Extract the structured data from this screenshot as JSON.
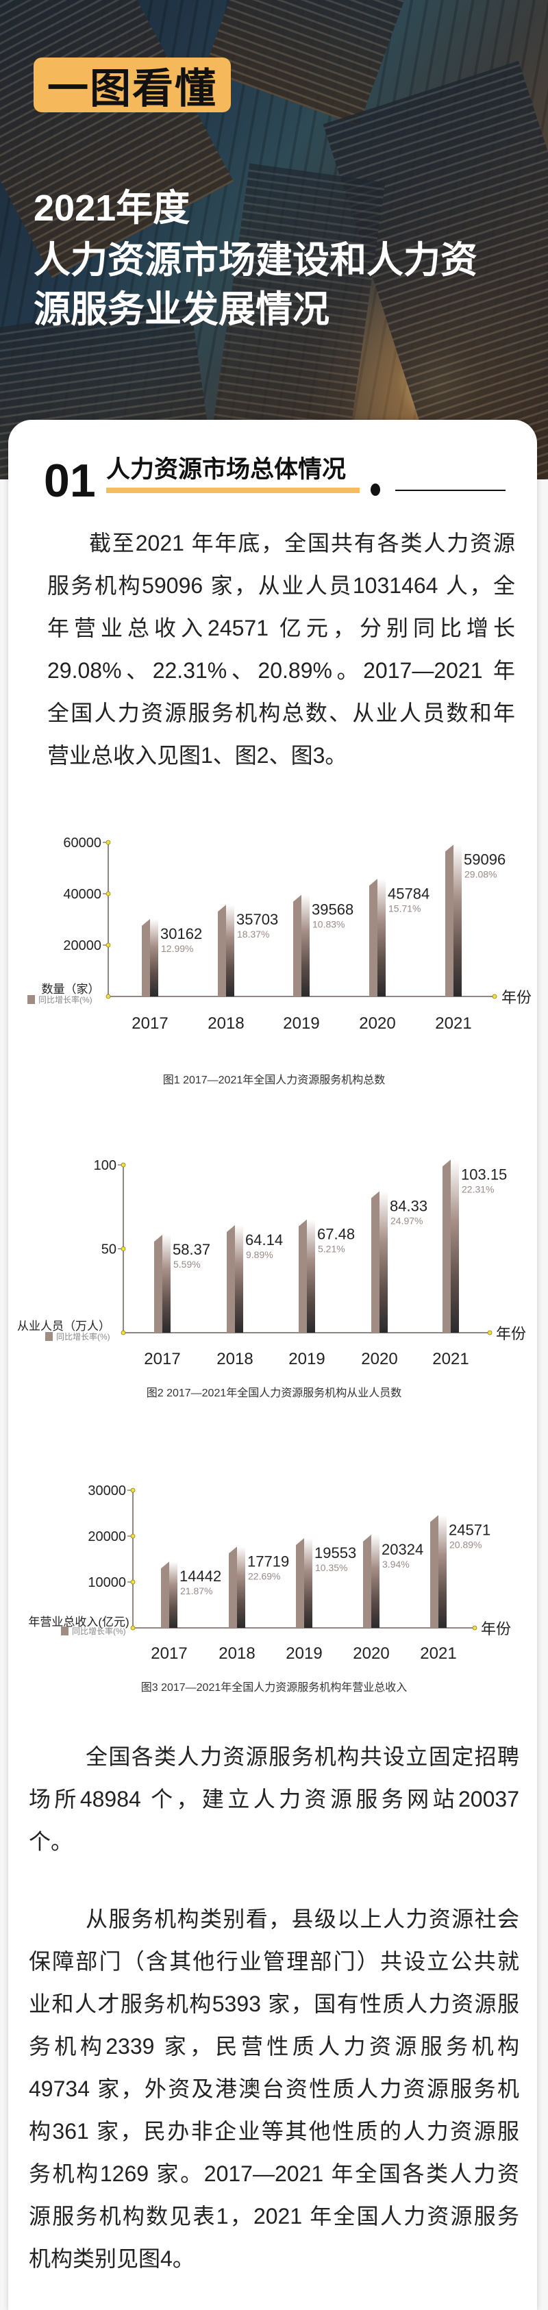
{
  "hero": {
    "badge": "一图看懂",
    "title_lines": [
      "2021年度",
      "人力资源市场建设和人力资",
      "源服务业发展情况"
    ]
  },
  "section": {
    "number": "01",
    "title": "人力资源市场总体情况"
  },
  "paragraphs": [
    {
      "lines": [
        "截至2021 年年底，全国共有各类人力资源",
        "服务机构59096 家，从业人员1031464 人，全",
        "年营业总收入24571 亿元，分别同比增长",
        "29.08%、22.31%、20.89%。2017—2021 年",
        "全国人力资源服务机构总数、从业人员数和年",
        "营业总收入见图1、图2、图3。"
      ]
    },
    {
      "lines": [
        "全国各类人力资源服务机构共设立固定招聘",
        "场所48984 个，建立人力资源服务网站20037",
        "个。"
      ]
    },
    {
      "lines": [
        "从服务机构类别看，县级以上人力资源社会",
        "保障部门（含其他行业管理部门）共设立公共就",
        "业和人才服务机构5393 家，国有性质人力资源服",
        "务机构2339 家，民营性质人力资源服务机构",
        "49734 家，外资及港澳台资性质人力资源服务机",
        "构361 家，民办非企业等其他性质的人力资源服",
        "务机构1269 家。2017—2021 年全国各类人力资",
        "源服务机构数见表1，2021 年全国人力资源服务",
        "机构类别见图4。"
      ]
    }
  ],
  "colors": {
    "accent": "#f5b95c",
    "bar_light": "#a08c82",
    "bar_dark": "#2e2d2f",
    "axis_dot": "#f2e03a",
    "growth_text": "#9a8a86"
  },
  "chart_data": [
    {
      "type": "bar",
      "title": "图1   2017—2021年全国人力资源服务机构总数",
      "categories": [
        "2017",
        "2018",
        "2019",
        "2020",
        "2021"
      ],
      "values": [
        30162,
        35703,
        39568,
        45784,
        59096
      ],
      "growth_rates": [
        "12.99%",
        "18.37%",
        "10.83%",
        "15.71%",
        "29.08%"
      ],
      "ylabel": "数量（家）",
      "xlabel": "年份",
      "legend": "同比增长率(%)",
      "yticks": [
        20000,
        40000,
        60000
      ],
      "ylim": [
        0,
        60000
      ],
      "grid": false
    },
    {
      "type": "bar",
      "title": "图2   2017—2021年全国人力资源服务机构从业人员数",
      "categories": [
        "2017",
        "2018",
        "2019",
        "2020",
        "2021"
      ],
      "values": [
        58.37,
        64.14,
        67.48,
        84.33,
        103.15
      ],
      "growth_rates": [
        "5.59%",
        "9.89%",
        "5.21%",
        "24.97%",
        "22.31%"
      ],
      "ylabel": "从业人员（万人）",
      "xlabel": "年份",
      "legend": "同比增长率(%)",
      "yticks": [
        50,
        100
      ],
      "ylim": [
        0,
        100
      ],
      "grid": false
    },
    {
      "type": "bar",
      "title": "图3   2017—2021年全国人力资源服务机构年营业总收入",
      "categories": [
        "2017",
        "2018",
        "2019",
        "2020",
        "2021"
      ],
      "values": [
        14442,
        17719,
        19553,
        20324,
        24571
      ],
      "growth_rates": [
        "21.87%",
        "22.69%",
        "10.35%",
        "3.94%",
        "20.89%"
      ],
      "ylabel": "年营业总收入(亿元)",
      "xlabel": "年份",
      "legend": "同比增长率(%)",
      "yticks": [
        10000,
        20000,
        30000
      ],
      "ylim": [
        0,
        30000
      ],
      "grid": false
    }
  ]
}
